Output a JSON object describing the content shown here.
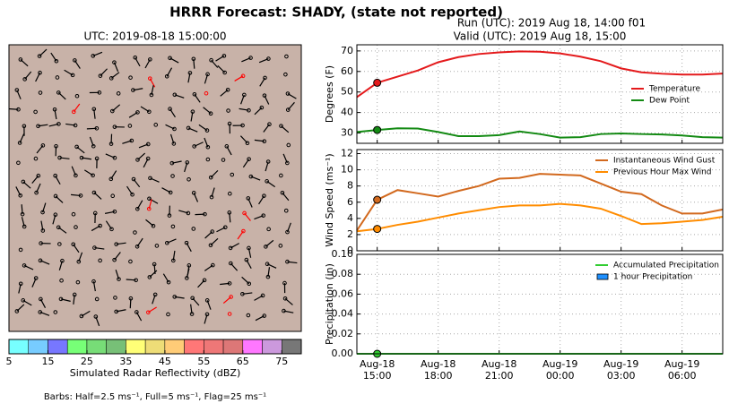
{
  "title": "HRRR Forecast: SHADY, (state not reported)",
  "run": "Run (UTC): 2019 Aug 18, 14:00 f01",
  "valid": "Valid (UTC): 2019 Aug 18, 15:00",
  "map": {
    "title": "UTC: 2019-08-18 15:00:00",
    "colorbar": {
      "lim": [
        5,
        80
      ],
      "colors": [
        "#77ffff",
        "#77ccff",
        "#7777ff",
        "#77ff77",
        "#77dd77",
        "#77c077",
        "#ffff77",
        "#eedd77",
        "#ffcc77",
        "#ff7777",
        "#ee7777",
        "#dd7777",
        "#ff77ff",
        "#cc99dd",
        "#777777"
      ],
      "ticks": [
        5,
        15,
        25,
        35,
        45,
        55,
        65,
        75
      ],
      "label": "Simulated Radar Reflectivity (dBZ)"
    },
    "barb_note": "Barbs: Half=2.5 ms⁻¹, Full=5 ms⁻¹, Flag=25 ms⁻¹"
  },
  "chart_data": [
    {
      "type": "line",
      "ylabel": "Degrees (F)",
      "ylim": [
        25,
        73
      ],
      "yticks": [
        30,
        40,
        50,
        60,
        70
      ],
      "grid": true,
      "legend": "center right",
      "highlight_x": "2019-08-18 15:00",
      "xlim": [
        "2019-08-18 14:00",
        "2019-08-19 08:00"
      ],
      "x": [
        "2019-08-18 14:00",
        "2019-08-18 15:00",
        "2019-08-18 16:00",
        "2019-08-18 17:00",
        "2019-08-18 18:00",
        "2019-08-18 19:00",
        "2019-08-18 20:00",
        "2019-08-18 21:00",
        "2019-08-18 22:00",
        "2019-08-18 23:00",
        "2019-08-19 00:00",
        "2019-08-19 01:00",
        "2019-08-19 02:00",
        "2019-08-19 03:00",
        "2019-08-19 04:00",
        "2019-08-19 05:00",
        "2019-08-19 06:00",
        "2019-08-19 07:00",
        "2019-08-19 08:00"
      ],
      "series": [
        {
          "name": "Temperature",
          "color": "#e41a1c",
          "style": "line",
          "values": [
            47.5,
            54.5,
            57.5,
            60.5,
            64.5,
            67,
            68.5,
            69.3,
            69.8,
            69.6,
            68.8,
            67.2,
            65,
            61.5,
            59.6,
            58.9,
            58.5,
            58.5,
            59
          ]
        },
        {
          "name": "Dew Point",
          "color": "#138a13",
          "style": "line",
          "values": [
            30.5,
            31.5,
            32.3,
            32.2,
            30.5,
            28.5,
            28.5,
            29,
            30.8,
            29.5,
            27.8,
            28,
            29.5,
            29.8,
            29.5,
            29.3,
            28.8,
            28,
            27.8
          ]
        }
      ]
    },
    {
      "type": "line",
      "ylabel": "Wind Speed (ms⁻¹)",
      "ylim": [
        0,
        12.5
      ],
      "yticks": [
        0,
        2,
        4,
        6,
        8,
        10,
        12
      ],
      "grid": true,
      "legend": "upper right",
      "highlight_x": "2019-08-18 15:00",
      "xlim": [
        "2019-08-18 14:00",
        "2019-08-19 08:00"
      ],
      "x": [
        "2019-08-18 14:00",
        "2019-08-18 15:00",
        "2019-08-18 16:00",
        "2019-08-18 17:00",
        "2019-08-18 18:00",
        "2019-08-18 19:00",
        "2019-08-18 20:00",
        "2019-08-18 21:00",
        "2019-08-18 22:00",
        "2019-08-18 23:00",
        "2019-08-19 00:00",
        "2019-08-19 01:00",
        "2019-08-19 02:00",
        "2019-08-19 03:00",
        "2019-08-19 04:00",
        "2019-08-19 05:00",
        "2019-08-19 06:00",
        "2019-08-19 07:00",
        "2019-08-19 08:00"
      ],
      "series": [
        {
          "name": "Instantaneous Wind Gust",
          "color": "#d2691e",
          "style": "line",
          "values": [
            2.5,
            6.3,
            7.5,
            7.1,
            6.7,
            7.4,
            8,
            8.9,
            9,
            9.5,
            9.4,
            9.3,
            8.3,
            7.3,
            7,
            5.6,
            4.6,
            4.6,
            5.1
          ]
        },
        {
          "name": "Previous Hour Max Wind",
          "color": "#ff8c00",
          "style": "line",
          "values": [
            2.4,
            2.7,
            3.2,
            3.6,
            4.1,
            4.6,
            5,
            5.4,
            5.6,
            5.6,
            5.8,
            5.6,
            5.2,
            4.3,
            3.3,
            3.4,
            3.6,
            3.8,
            4.2
          ]
        }
      ]
    },
    {
      "type": "line",
      "ylabel": "Precipitation (in)",
      "ylim": [
        0,
        0.1
      ],
      "yticks": [
        {
          "value": 0,
          "label": "0.00"
        },
        {
          "value": 0.02,
          "label": "0.02"
        },
        {
          "value": 0.04,
          "label": "0.04"
        },
        {
          "value": 0.06,
          "label": "0.06"
        },
        {
          "value": 0.08,
          "label": "0.08"
        },
        {
          "value": 0.1,
          "label": "0.10"
        }
      ],
      "grid": true,
      "legend": "upper right",
      "highlight_x": "2019-08-18 15:00",
      "xlim": [
        "2019-08-18 14:00",
        "2019-08-19 08:00"
      ],
      "xticks": [
        {
          "value": "2019-08-18 15:00",
          "label": "Aug-18\n15:00"
        },
        {
          "value": "2019-08-18 18:00",
          "label": "Aug-18\n18:00"
        },
        {
          "value": "2019-08-18 21:00",
          "label": "Aug-18\n21:00"
        },
        {
          "value": "2019-08-19 00:00",
          "label": "Aug-19\n00:00"
        },
        {
          "value": "2019-08-19 03:00",
          "label": "Aug-19\n03:00"
        },
        {
          "value": "2019-08-19 06:00",
          "label": "Aug-19\n06:00"
        }
      ],
      "x": [
        "2019-08-18 14:00",
        "2019-08-18 15:00",
        "2019-08-18 16:00",
        "2019-08-18 17:00",
        "2019-08-18 18:00",
        "2019-08-18 19:00",
        "2019-08-18 20:00",
        "2019-08-18 21:00",
        "2019-08-18 22:00",
        "2019-08-18 23:00",
        "2019-08-19 00:00",
        "2019-08-19 01:00",
        "2019-08-19 02:00",
        "2019-08-19 03:00",
        "2019-08-19 04:00",
        "2019-08-19 05:00",
        "2019-08-19 06:00",
        "2019-08-19 07:00",
        "2019-08-19 08:00"
      ],
      "series": [
        {
          "name": "Accumulated Precipitation",
          "color": "#32cd32",
          "style": "line",
          "values": [
            0,
            0,
            0,
            0,
            0,
            0,
            0,
            0,
            0,
            0,
            0,
            0,
            0,
            0,
            0,
            0,
            0,
            0,
            0
          ]
        },
        {
          "name": "1 hour Precipitation",
          "color": "#1e90ff",
          "style": "bar",
          "values": [
            0,
            0,
            0,
            0,
            0,
            0,
            0,
            0,
            0,
            0,
            0,
            0,
            0,
            0,
            0,
            0,
            0,
            0,
            0
          ]
        }
      ]
    }
  ]
}
